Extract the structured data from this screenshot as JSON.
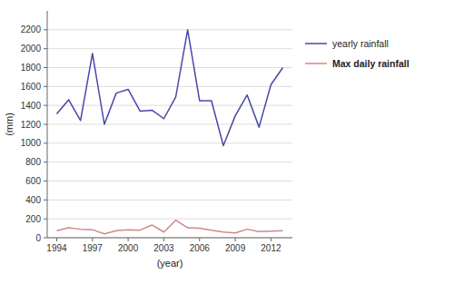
{
  "chart_data": {
    "type": "line",
    "x_label": "(year)",
    "y_label": "(mm)",
    "x": [
      1994,
      1995,
      1996,
      1997,
      1998,
      1999,
      2000,
      2001,
      2002,
      2003,
      2004,
      2005,
      2006,
      2007,
      2008,
      2009,
      2010,
      2011,
      2012,
      2013
    ],
    "series": [
      {
        "name": "yearly rainfall",
        "color": "#4848a8",
        "values": [
          1310,
          1460,
          1240,
          1950,
          1200,
          1530,
          1570,
          1340,
          1350,
          1260,
          1490,
          2200,
          1450,
          1450,
          975,
          1290,
          1510,
          1170,
          1620,
          1800
        ]
      },
      {
        "name": "Max daily rainfall",
        "color": "#d08888",
        "values": [
          75,
          105,
          90,
          85,
          40,
          75,
          85,
          80,
          135,
          60,
          185,
          105,
          100,
          80,
          60,
          50,
          90,
          65,
          70,
          75
        ]
      }
    ],
    "xlim": [
      1993.2,
      2013.8
    ],
    "xticks": [
      1994,
      1997,
      2000,
      2003,
      2006,
      2009,
      2012
    ],
    "ylim": [
      0,
      2400
    ],
    "yticks": [
      0,
      200,
      400,
      600,
      800,
      1000,
      1200,
      1400,
      1600,
      1800,
      2000,
      2200
    ],
    "grid": true,
    "legend": "right"
  }
}
